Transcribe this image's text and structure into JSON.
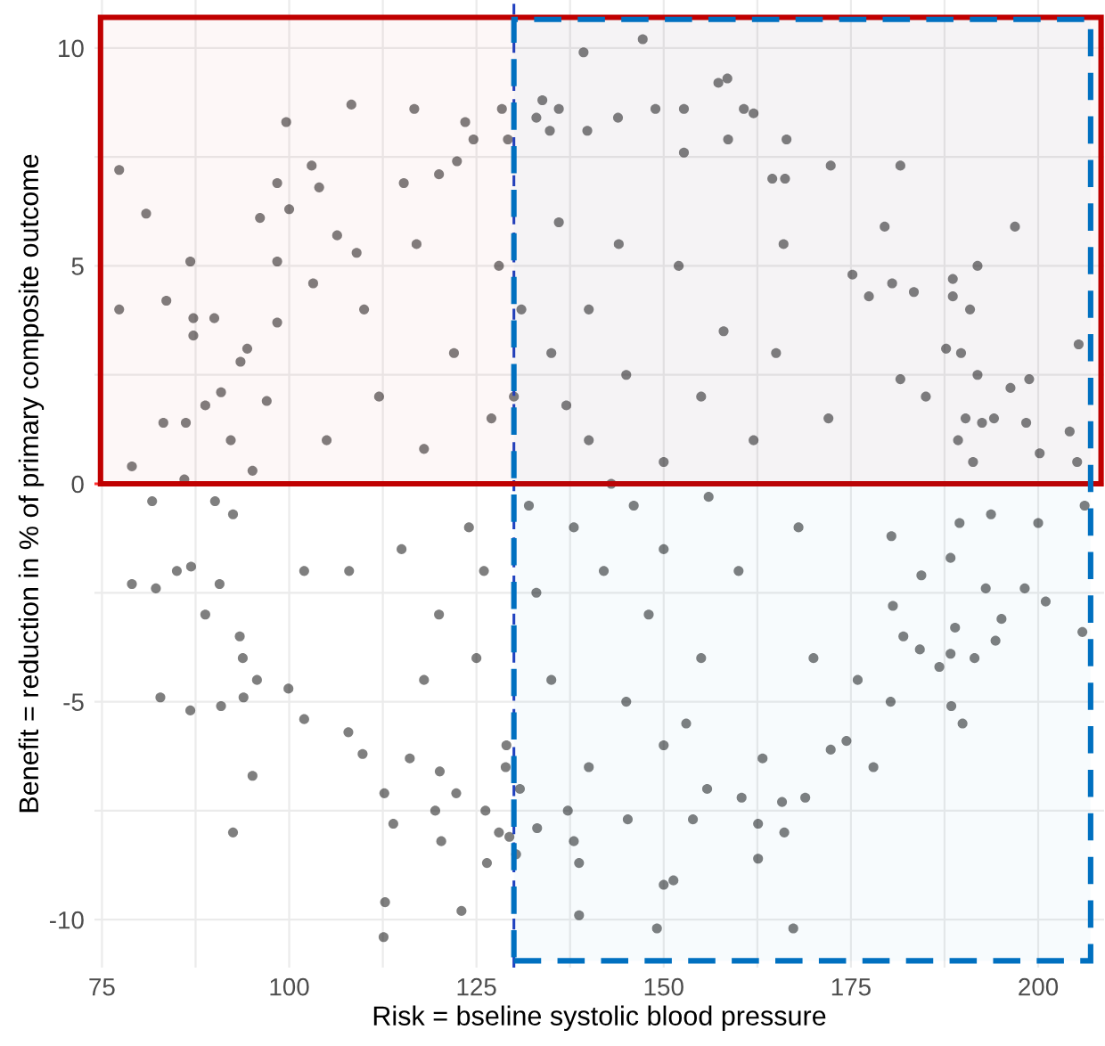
{
  "chart_data": {
    "type": "scatter",
    "xlabel": "Risk = bseline systolic blood pressure",
    "ylabel": "Benefit = reduction in % of primary composite outcome",
    "xlim": [
      74,
      208.8
    ],
    "ylim": [
      -11.1,
      11.1
    ],
    "xticks": [
      75,
      {
        "value": 87.5,
        "label": null
      },
      100,
      {
        "value": 112.5,
        "label": null
      },
      125,
      {
        "value": 137.5,
        "label": null
      },
      150,
      {
        "value": 162.5,
        "label": null
      },
      175,
      {
        "value": 187.5,
        "label": null
      },
      200
    ],
    "yticks": [
      -10,
      {
        "value": -7.5,
        "label": null
      },
      -5,
      {
        "value": -2.5,
        "label": null
      },
      0,
      {
        "value": 2.5,
        "label": null
      },
      5,
      {
        "value": 7.5,
        "label": null
      },
      10
    ],
    "grid": true,
    "marker": "circle",
    "ref_lines": [
      {
        "axis": "y",
        "value": 0,
        "color": "#ff3030",
        "line_style": "dashed"
      },
      {
        "axis": "x",
        "value": 130,
        "color": "#2040c0",
        "line_style": "dashed"
      }
    ],
    "bands": [
      {
        "axis": "y",
        "from": 0,
        "to": 10.7,
        "color": "#c00000"
      },
      {
        "axis": "x",
        "from": 130,
        "to": 207,
        "color": "#0070c0"
      }
    ],
    "series": [
      {
        "color": "#000000",
        "x": [
          77.3,
          77.3,
          80.9,
          79.0,
          86.8,
          83.6,
          87.2,
          87.2,
          90.0,
          83.2,
          86.2,
          88.8,
          90.9,
          99.6,
          98.4,
          103.0,
          104.0,
          96.1,
          100.0,
          108.3,
          116.7,
          123.5,
          124.6,
          128.4,
          129.2,
          133.8,
          136.0,
          133.0,
          134.8,
          115.3,
          120.0,
          122.4,
          98.4,
          103.2,
          106.4,
          109.0,
          98.4,
          93.5,
          94.4,
          97.0,
          92.2,
          95.1,
          86.0,
          81.7,
          147.2,
          139.3,
          157.3,
          158.5,
          143.9,
          148.9,
          152.7,
          160.7,
          162.0,
          139.8,
          158.6,
          166.4,
          152.7,
          181.6,
          172.3,
          164.5,
          166.2,
          196.9,
          179.5,
          191.9,
          188.6,
          188.6,
          190.9,
          205.4,
          180.5,
          175.2,
          177.4,
          183.4,
          198.8,
          196.3,
          191.9,
          189.7,
          187.7,
          194.1,
          192.5,
          198.4,
          190.3,
          189.3,
          191.3,
          200.2,
          204.2,
          205.2,
          185.0,
          181.6,
          206.2,
          79.0,
          82.2,
          85.0,
          86.9,
          82.8,
          86.8,
          88.8,
          90.7,
          90.1,
          92.5,
          93.4,
          93.8,
          90.9,
          93.9,
          95.7,
          95.1,
          92.5,
          99.9,
          102.0,
          107.9,
          109.8,
          112.7,
          113.9,
          112.8,
          112.6,
          123.0,
          120.3,
          119.5,
          122.3,
          126.2,
          126.4,
          128.0,
          129.4,
          130.3,
          128.9,
          120.1,
          116.1,
          133.1,
          130.8,
          138.7,
          149.1,
          167.3,
          150.0,
          151.3,
          162.6,
          138.7,
          138.0,
          166.1,
          162.6,
          153.9,
          145.2,
          137.2,
          165.8,
          168.9,
          160.4,
          155.8,
          178.0,
          180.3,
          188.4,
          189.9,
          163.2,
          172.3,
          174.4,
          175.9,
          188.3,
          191.5,
          194.3,
          195.1,
          201.0,
          205.9,
          198.2,
          193.0,
          188.9,
          186.8,
          184.2,
          182.0,
          200.0,
          193.7,
          189.5,
          188.3,
          180.4,
          180.6,
          184.4,
          130,
          135,
          140,
          145,
          150,
          138,
          142,
          148,
          132,
          127,
          122,
          118,
          115,
          120,
          125,
          135,
          145,
          155,
          160,
          162,
          158,
          152,
          144,
          136,
          128,
          124,
          155,
          165,
          168,
          170,
          112,
          108,
          105,
          110,
          117,
          150,
          140,
          133,
          146,
          156,
          129,
          140,
          150,
          143,
          137,
          126,
          131,
          153,
          118,
          102,
          172,
          166
        ],
        "values": [
          7.2,
          4.0,
          6.2,
          0.4,
          5.1,
          4.2,
          3.8,
          3.4,
          3.8,
          1.4,
          1.4,
          1.8,
          2.1,
          8.3,
          6.9,
          7.3,
          6.8,
          6.1,
          6.3,
          8.7,
          8.6,
          8.3,
          7.9,
          8.6,
          7.9,
          8.8,
          8.6,
          8.4,
          8.1,
          6.9,
          7.1,
          7.4,
          5.1,
          4.6,
          5.7,
          5.3,
          3.7,
          2.8,
          3.1,
          1.9,
          1.0,
          0.3,
          0.1,
          -0.4,
          10.2,
          9.9,
          9.2,
          9.3,
          8.4,
          8.6,
          8.6,
          8.6,
          8.5,
          8.1,
          7.9,
          7.9,
          7.6,
          7.3,
          7.3,
          7.0,
          7.0,
          5.9,
          5.9,
          5.0,
          4.7,
          4.3,
          4.0,
          3.2,
          4.6,
          4.8,
          4.3,
          4.4,
          2.4,
          2.2,
          2.5,
          3.0,
          3.1,
          1.5,
          1.4,
          1.4,
          1.5,
          1.0,
          0.5,
          0.7,
          1.2,
          0.5,
          2.0,
          2.4,
          -0.5,
          -2.3,
          -2.4,
          -2.0,
          -1.9,
          -4.9,
          -5.2,
          -3.0,
          -2.3,
          -0.4,
          -0.7,
          -3.5,
          -4.0,
          -5.1,
          -4.9,
          -4.5,
          -6.7,
          -8.0,
          -4.7,
          -5.4,
          -5.7,
          -6.2,
          -7.1,
          -7.8,
          -9.6,
          -10.4,
          -9.8,
          -8.2,
          -7.5,
          -7.1,
          -7.5,
          -8.7,
          -8.0,
          -8.1,
          -8.5,
          -6.5,
          -6.6,
          -6.3,
          -7.9,
          -7.0,
          -9.9,
          -10.2,
          -10.2,
          -9.2,
          -9.1,
          -8.6,
          -8.7,
          -8.2,
          -8.0,
          -7.8,
          -7.7,
          -7.7,
          -7.5,
          -7.3,
          -7.2,
          -7.2,
          -7.0,
          -6.5,
          -5.0,
          -5.1,
          -5.5,
          -6.3,
          -6.1,
          -5.9,
          -4.5,
          -3.9,
          -4.0,
          -3.6,
          -3.1,
          -2.7,
          -3.4,
          -2.4,
          -2.4,
          -3.3,
          -4.2,
          -3.8,
          -3.5,
          -0.9,
          -0.7,
          -0.9,
          -1.7,
          -1.2,
          -2.8,
          -2.1,
          2,
          3,
          1,
          2.5,
          0.5,
          -1,
          -2,
          -3,
          -0.5,
          1.5,
          3,
          0.8,
          -1.5,
          -3,
          -4,
          -4.5,
          -5,
          -4,
          -2,
          1,
          3.5,
          5,
          5.5,
          6,
          5,
          -1,
          2,
          3,
          -1,
          -4,
          2,
          -2,
          1,
          4,
          5.5,
          -1.5,
          4,
          -2.5,
          -0.5,
          -0.3,
          -6,
          -6.5,
          -6,
          0,
          1.8,
          -2,
          4,
          -5.5,
          -4.5,
          -2,
          1.5,
          5.5
        ]
      }
    ]
  }
}
